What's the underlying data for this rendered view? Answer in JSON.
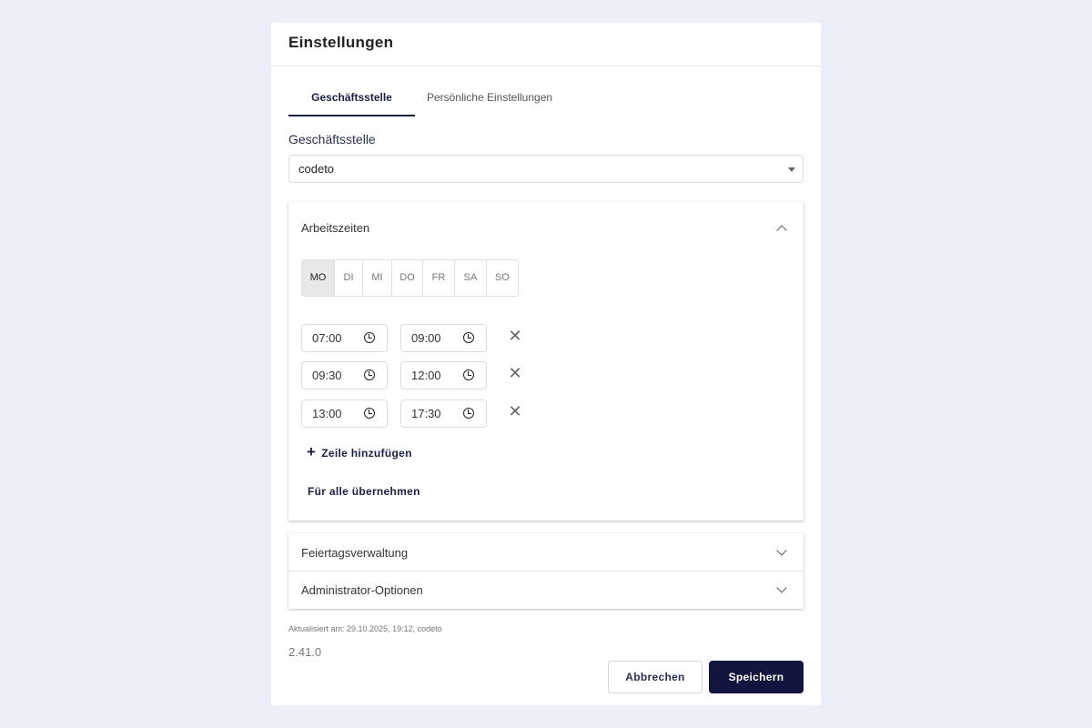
{
  "dialog": {
    "title": "Einstellungen"
  },
  "tabs": [
    {
      "label": "Geschäftsstelle",
      "active": true
    },
    {
      "label": "Persönliche Einstellungen",
      "active": false
    }
  ],
  "office": {
    "label": "Geschäftsstelle",
    "value": "codeto"
  },
  "working_hours": {
    "title": "Arbeitszeiten",
    "expanded": true,
    "days": [
      {
        "label": "MO",
        "active": true
      },
      {
        "label": "DI"
      },
      {
        "label": "MI"
      },
      {
        "label": "DO"
      },
      {
        "label": "FR"
      },
      {
        "label": "SA"
      },
      {
        "label": "SO"
      }
    ],
    "rows": [
      {
        "start": "07:00",
        "end": "09:00"
      },
      {
        "start": "09:30",
        "end": "12:00"
      },
      {
        "start": "13:00",
        "end": "17:30"
      }
    ],
    "add_row": "Zeile hinzufügen",
    "apply_all": "Für alle übernehmen"
  },
  "sections": [
    {
      "title": "Feiertagsverwaltung"
    },
    {
      "title": "Administrator-Optionen"
    }
  ],
  "footer": {
    "updated": "Aktualisiert am: 29.10.2025, 19:12, codeto",
    "version": "2.41.0",
    "cancel": "Abbrechen",
    "save": "Speichern"
  },
  "colors": {
    "primary": "#12163f",
    "background": "#eceff7"
  }
}
